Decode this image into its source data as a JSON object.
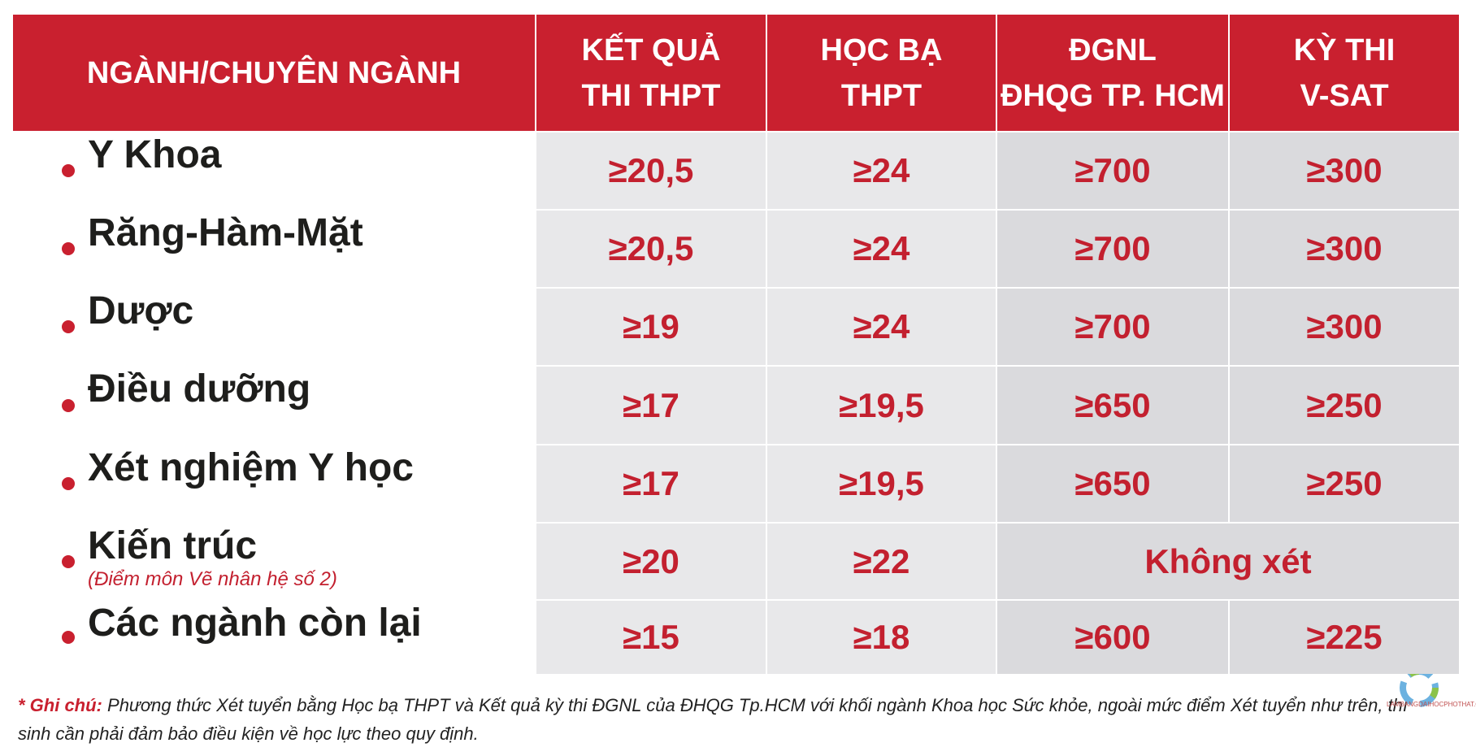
{
  "table": {
    "header": [
      "NGÀNH/CHUYÊN NGÀNH",
      "KẾT QUẢ\nTHI THPT",
      "HỌC BẠ\nTHPT",
      "ĐGNL\nĐHQG  TP. HCM",
      "KỲ THI\nV-SAT"
    ],
    "rows": [
      {
        "name": "Y Khoa",
        "cells": [
          "≥20,5",
          "≥24",
          "≥700",
          "≥300"
        ]
      },
      {
        "name": "Răng-Hàm-Mặt",
        "cells": [
          "≥20,5",
          "≥24",
          "≥700",
          "≥300"
        ]
      },
      {
        "name": "Dược",
        "cells": [
          "≥19",
          "≥24",
          "≥700",
          "≥300"
        ]
      },
      {
        "name": "Điều dưỡng",
        "cells": [
          "≥17",
          "≥19,5",
          "≥650",
          "≥250"
        ]
      },
      {
        "name": "Xét nghiệm Y học",
        "cells": [
          "≥17",
          "≥19,5",
          "≥650",
          "≥250"
        ]
      },
      {
        "name": "Kiến trúc",
        "note": "(Điểm môn Vẽ nhân hệ số 2)",
        "cells": [
          "≥20",
          "≥22",
          "Không xét"
        ]
      },
      {
        "name": "Các ngành còn lại",
        "cells": [
          "≥15",
          "≥18",
          "≥600",
          "≥225"
        ]
      }
    ]
  },
  "footnote": {
    "label": "* Ghi chú:",
    "text": "Phương thức Xét tuyển bằng Học bạ THPT và Kết quả kỳ thi ĐGNL của ĐHQG Tp.HCM với khối ngành Khoa học Sức khỏe, ngoài mức điểm Xét tuyển như trên, thí sinh cần phải đảm bảo điều kiện về học lực theo quy định."
  },
  "watermark": "LAMBANGDAIHOCPHOTHAT.COM"
}
